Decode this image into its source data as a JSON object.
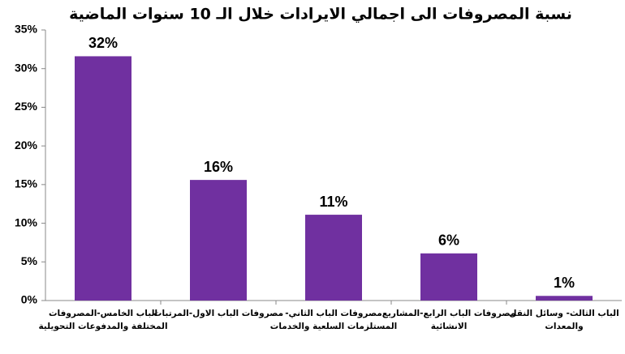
{
  "chart_data": {
    "type": "bar",
    "title": "نسبة المصروفات الى اجمالي الايرادات خلال الـ 10 سنوات الماضية",
    "categories": [
      [
        "الباب الخامس-المصروفات",
        "المختلفة والمدفوعات التحويلية"
      ],
      [
        "مصروفات الباب الاول-المرتبات"
      ],
      [
        "مصروفات الباب الثاني-",
        "المستلزمات السلعية والخدمات"
      ],
      [
        "مصروفات الباب الرابع-المشاريع",
        "الانشائية"
      ],
      [
        "الباب الثالث- وسائل النقل",
        "والمعدات"
      ]
    ],
    "values": [
      31.6,
      15.6,
      11.1,
      6.1,
      0.6
    ],
    "value_labels": [
      "32%",
      "16%",
      "11%",
      "6%",
      "1%"
    ],
    "color": "#7030a0",
    "ylim": [
      0,
      35
    ],
    "yticks": [
      {
        "value": 0,
        "label": "0%"
      },
      {
        "value": 5,
        "label": "5%"
      },
      {
        "value": 10,
        "label": "10%"
      },
      {
        "value": 15,
        "label": "15%"
      },
      {
        "value": 20,
        "label": "20%"
      },
      {
        "value": 25,
        "label": "25%"
      },
      {
        "value": 30,
        "label": "30%"
      },
      {
        "value": 35,
        "label": "35%"
      }
    ],
    "grid": false
  }
}
